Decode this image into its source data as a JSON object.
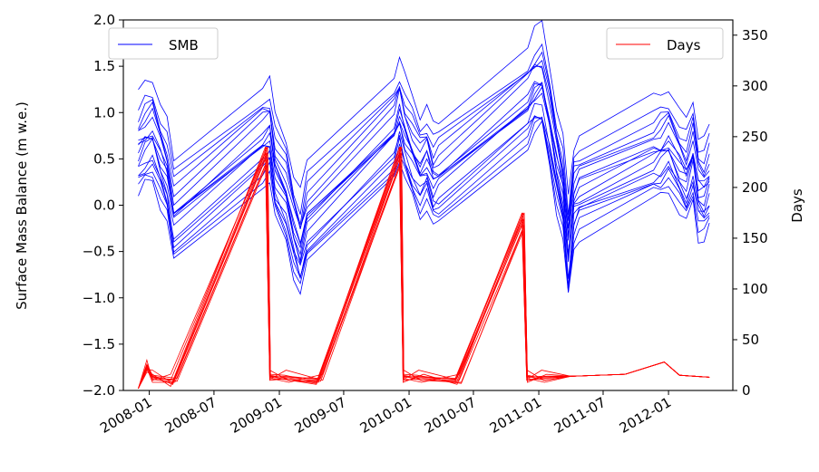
{
  "chart_data": {
    "type": "line",
    "title": "",
    "xlabel": "",
    "ylabel": "Surface Mass Balance (m w.e.)",
    "y2label": "Days",
    "xlim": [
      "2007-10-20",
      "2012-06-30"
    ],
    "ylim": [
      -2.0,
      2.0
    ],
    "y2lim": [
      0,
      365
    ],
    "x_ticks": [
      "2008-01",
      "2008-07",
      "2009-01",
      "2009-07",
      "2010-01",
      "2010-07",
      "2011-01",
      "2011-07",
      "2012-01"
    ],
    "y_ticks": [
      "-2.0",
      "-1.5",
      "-1.0",
      "-0.5",
      "0.0",
      "0.5",
      "1.0",
      "1.5",
      "2.0"
    ],
    "y2_ticks": [
      "0",
      "50",
      "100",
      "150",
      "200",
      "250",
      "300",
      "350"
    ],
    "grid": false,
    "legends": [
      {
        "name": "SMB",
        "color": "#0000ff",
        "placement": "upper-left"
      },
      {
        "name": "Days",
        "color": "#ff0000",
        "placement": "upper-right"
      }
    ],
    "colors": {
      "smb": "#0000ff",
      "days": "#ff0000"
    },
    "smb_series_base": {
      "name": "SMB",
      "dates": [
        "2007-12-01",
        "2007-12-20",
        "2008-01-10",
        "2008-02-01",
        "2008-02-20",
        "2008-03-10",
        "2008-11-15",
        "2008-12-05",
        "2008-12-20",
        "2009-01-20",
        "2009-02-10",
        "2009-03-01",
        "2009-03-20",
        "2009-11-20",
        "2009-12-05",
        "2009-12-20",
        "2010-01-10",
        "2010-02-01",
        "2010-02-20",
        "2010-03-10",
        "2010-03-25",
        "2010-12-01",
        "2010-12-20",
        "2011-01-10",
        "2011-02-01",
        "2011-02-20",
        "2011-03-10",
        "2011-03-25",
        "2011-04-10",
        "2011-04-25",
        "2011-11-20",
        "2011-12-10",
        "2012-01-01",
        "2012-02-01",
        "2012-02-20",
        "2012-03-10",
        "2012-03-25",
        "2012-04-10",
        "2012-04-25"
      ],
      "values": [
        0.6,
        0.72,
        0.78,
        0.5,
        0.3,
        -0.12,
        0.72,
        0.78,
        0.35,
        0.1,
        -0.25,
        -0.45,
        -0.15,
        0.82,
        1.02,
        0.78,
        0.58,
        0.38,
        0.48,
        0.25,
        0.3,
        1.15,
        1.3,
        1.35,
        0.92,
        0.45,
        0.12,
        -0.5,
        0.05,
        0.15,
        0.55,
        0.6,
        0.68,
        0.42,
        0.3,
        0.55,
        0.15,
        0.1,
        0.25
      ],
      "offsets": [
        -0.5,
        -0.4,
        -0.32,
        -0.25,
        -0.18,
        -0.12,
        -0.06,
        0.0,
        0.06,
        0.12,
        0.18,
        0.25,
        0.32,
        0.4,
        0.5,
        0.6,
        -0.22,
        0.08
      ]
    },
    "days_series_base": {
      "name": "Days",
      "cycles": [
        {
          "start": "2008-03-01",
          "peak": "2008-11-26",
          "peak_value": 240,
          "after": "2008-12-05"
        },
        {
          "start": "2009-04-15",
          "peak": "2009-12-08",
          "peak_value": 240,
          "after": "2009-12-15"
        },
        {
          "start": "2010-05-10",
          "peak": "2010-11-18",
          "peak_value": 175,
          "after": "2010-11-28"
        }
      ],
      "baseline_days": [
        8,
        10,
        12,
        16,
        14,
        11,
        15,
        13,
        20,
        12,
        14,
        10
      ]
    }
  }
}
